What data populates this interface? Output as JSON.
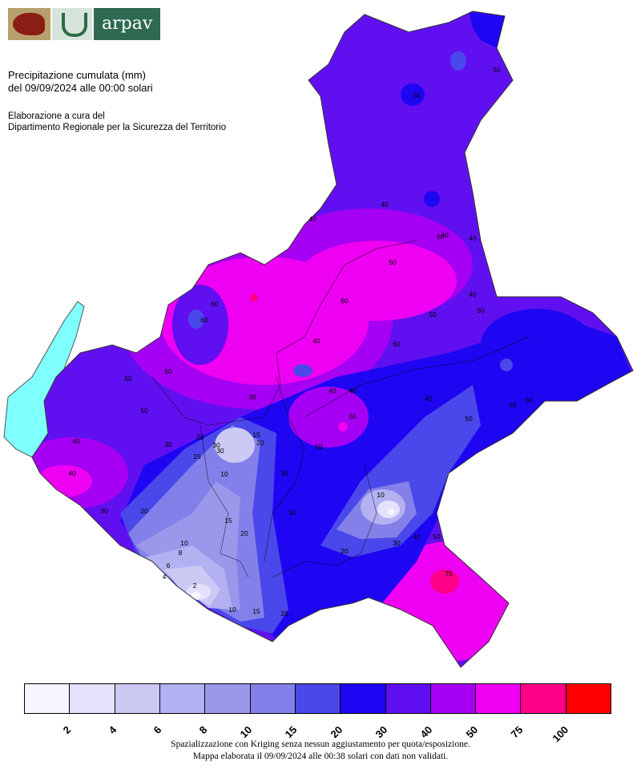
{
  "logo": {
    "text": "arpav"
  },
  "title": {
    "line1": "Precipitazione cumulata (mm)",
    "line2": "del 09/09/2024 alle 00:00 solari"
  },
  "credit": {
    "line1": "Elaborazione a cura del",
    "line2": "Dipartimento Regionale per la Sicurezza del Territorio"
  },
  "legend": {
    "colors": [
      "#f7f5ff",
      "#e4e2fb",
      "#cccaf5",
      "#b3b1f1",
      "#9b98ec",
      "#8480ea",
      "#4a48ea",
      "#1f06f2",
      "#6010f0",
      "#a500f4",
      "#ee00f2",
      "#ff0088",
      "#ff0000"
    ],
    "ticks": [
      "2",
      "4",
      "6",
      "8",
      "10",
      "15",
      "20",
      "30",
      "40",
      "50",
      "75",
      "100"
    ]
  },
  "footnote": {
    "line1": "Spazializzazione con Kriging senza nessun aggiustamento per quota/esposizione.",
    "line2": "Mappa elaborata il 09/09/2024 alle 00:38 solari con dati non validati."
  },
  "contour_labels": [
    "50",
    "50",
    "40",
    "40",
    "50",
    "50",
    "60",
    "60",
    "50",
    "40",
    "50",
    "50",
    "60",
    "60",
    "50",
    "60",
    "40",
    "30",
    "40",
    "50",
    "40",
    "40",
    "30",
    "30",
    "20",
    "20",
    "20",
    "15",
    "15",
    "10",
    "10",
    "8",
    "6",
    "4",
    "2",
    "10",
    "15",
    "20",
    "30",
    "30",
    "20",
    "15",
    "10",
    "20",
    "30",
    "40",
    "50",
    "75",
    "60",
    "40",
    "50",
    "40",
    "50",
    "50",
    "30",
    "30",
    "40",
    "40"
  ]
}
